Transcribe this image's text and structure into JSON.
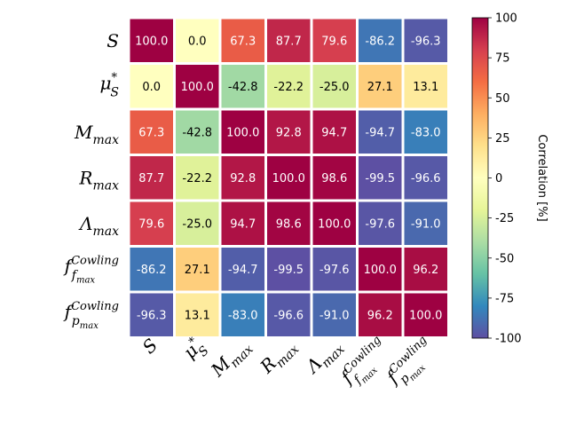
{
  "chart_data": {
    "type": "heatmap",
    "title": "",
    "row_labels": [
      {
        "base": "S",
        "sup": "",
        "sub": "",
        "subsub": ""
      },
      {
        "base": "μ",
        "sup": "*",
        "sub": "S",
        "subsub": ""
      },
      {
        "base": "M",
        "sup": "",
        "sub": "max",
        "subsub": ""
      },
      {
        "base": "R",
        "sup": "",
        "sub": "max",
        "subsub": ""
      },
      {
        "base": "Λ",
        "sup": "",
        "sub": "max",
        "subsub": ""
      },
      {
        "base": "f",
        "sup": "Cowling",
        "sub": "f",
        "subsub": "max"
      },
      {
        "base": "f",
        "sup": "Cowling",
        "sub": "p",
        "subsub": "max"
      }
    ],
    "col_labels": [
      {
        "base": "S",
        "sup": "",
        "sub": "",
        "subsub": ""
      },
      {
        "base": "μ",
        "sup": "*",
        "sub": "S",
        "subsub": ""
      },
      {
        "base": "M",
        "sup": "",
        "sub": "max",
        "subsub": ""
      },
      {
        "base": "R",
        "sup": "",
        "sub": "max",
        "subsub": ""
      },
      {
        "base": "Λ",
        "sup": "",
        "sub": "max",
        "subsub": ""
      },
      {
        "base": "f",
        "sup": "Cowling",
        "sub": "f",
        "subsub": "max"
      },
      {
        "base": "f",
        "sup": "Cowling",
        "sub": "p",
        "subsub": "max"
      }
    ],
    "values": [
      [
        100.0,
        0.0,
        67.3,
        87.7,
        79.6,
        -86.2,
        -96.3
      ],
      [
        0.0,
        100.0,
        -42.8,
        -22.2,
        -25.0,
        27.1,
        13.1
      ],
      [
        67.3,
        -42.8,
        100.0,
        92.8,
        94.7,
        -94.7,
        -83.0
      ],
      [
        87.7,
        -22.2,
        92.8,
        100.0,
        98.6,
        -99.5,
        -96.6
      ],
      [
        79.6,
        -25.0,
        94.7,
        98.6,
        100.0,
        -97.6,
        -91.0
      ],
      [
        -86.2,
        27.1,
        -94.7,
        -99.5,
        -97.6,
        100.0,
        96.2
      ],
      [
        -96.3,
        13.1,
        -83.0,
        -96.6,
        -91.0,
        96.2,
        100.0
      ]
    ],
    "value_format": "1 decimal",
    "colormap": "Spectral_r",
    "colorbar": {
      "label": "Correlation [%]",
      "range": [
        -100,
        100
      ],
      "ticks": [
        -100,
        -75,
        -50,
        -25,
        0,
        25,
        50,
        75,
        100
      ]
    }
  }
}
